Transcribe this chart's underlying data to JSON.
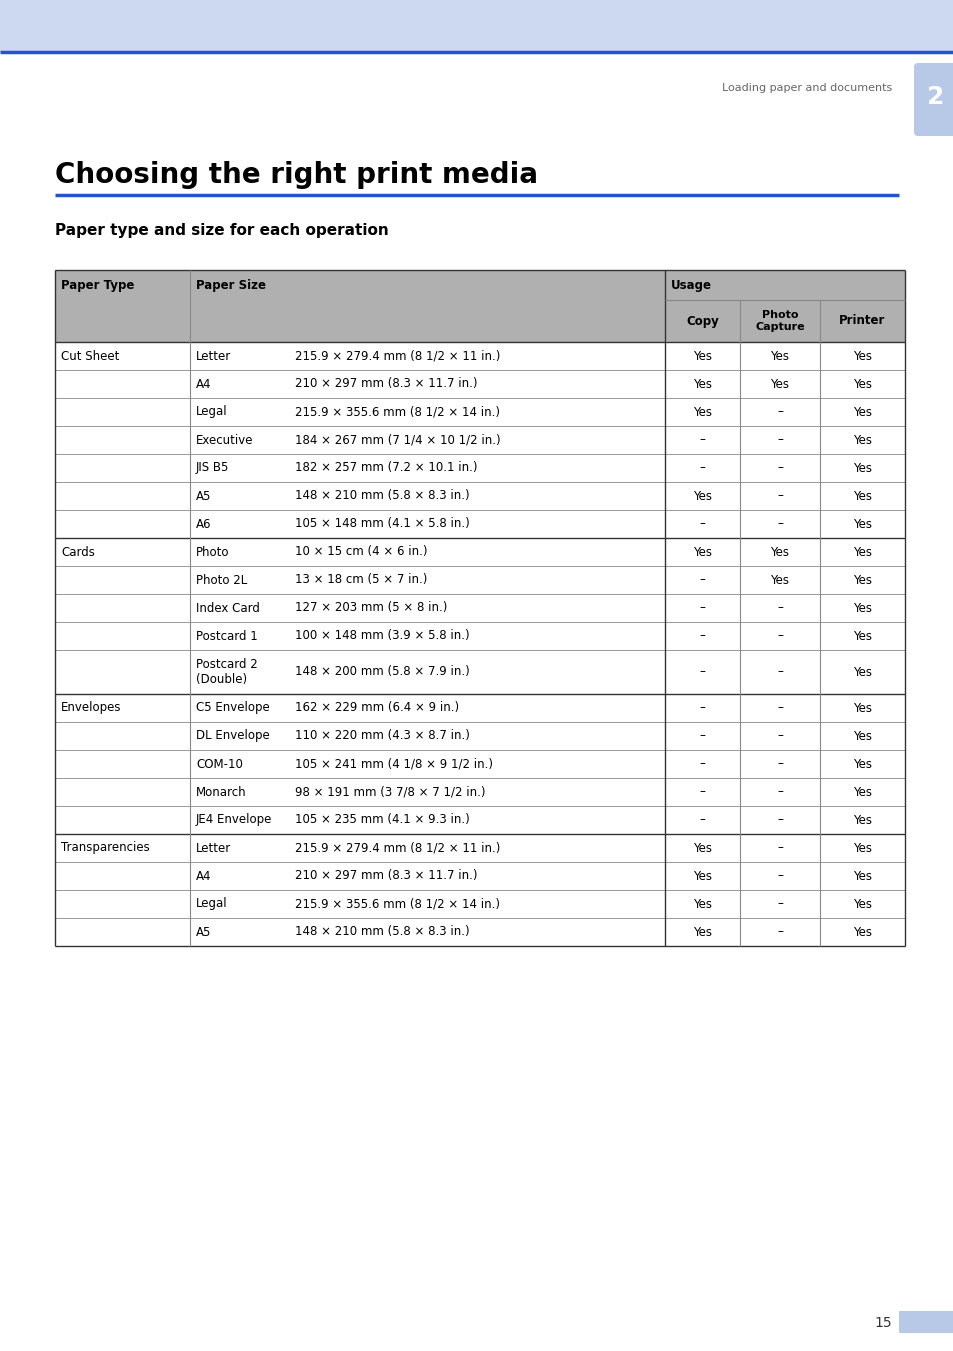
{
  "page_bg": "#ffffff",
  "header_bg": "#ccd9f0",
  "header_line_color": "#2255cc",
  "table_header_bg": "#b0b0b0",
  "header_text": "Loading paper and documents",
  "title": "Choosing the right print media",
  "subtitle": "Paper type and size for each operation",
  "chapter_num": "2",
  "chapter_badge_color": "#b8c9e8",
  "page_num": "15",
  "page_num_badge": "#b8c9e8",
  "rows": [
    [
      "Cut Sheet",
      "Letter",
      "215.9 × 279.4 mm (8 1/2 × 11 in.)",
      "Yes",
      "Yes",
      "Yes"
    ],
    [
      "",
      "A4",
      "210 × 297 mm (8.3 × 11.7 in.)",
      "Yes",
      "Yes",
      "Yes"
    ],
    [
      "",
      "Legal",
      "215.9 × 355.6 mm (8 1/2 × 14 in.)",
      "Yes",
      "–",
      "Yes"
    ],
    [
      "",
      "Executive",
      "184 × 267 mm (7 1/4 × 10 1/2 in.)",
      "–",
      "–",
      "Yes"
    ],
    [
      "",
      "JIS B5",
      "182 × 257 mm (7.2 × 10.1 in.)",
      "–",
      "–",
      "Yes"
    ],
    [
      "",
      "A5",
      "148 × 210 mm (5.8 × 8.3 in.)",
      "Yes",
      "–",
      "Yes"
    ],
    [
      "",
      "A6",
      "105 × 148 mm (4.1 × 5.8 in.)",
      "–",
      "–",
      "Yes"
    ],
    [
      "Cards",
      "Photo",
      "10 × 15 cm (4 × 6 in.)",
      "Yes",
      "Yes",
      "Yes"
    ],
    [
      "",
      "Photo 2L",
      "13 × 18 cm (5 × 7 in.)",
      "–",
      "Yes",
      "Yes"
    ],
    [
      "",
      "Index Card",
      "127 × 203 mm (5 × 8 in.)",
      "–",
      "–",
      "Yes"
    ],
    [
      "",
      "Postcard 1",
      "100 × 148 mm (3.9 × 5.8 in.)",
      "–",
      "–",
      "Yes"
    ],
    [
      "",
      "Postcard 2\n(Double)",
      "148 × 200 mm (5.8 × 7.9 in.)",
      "–",
      "–",
      "Yes"
    ],
    [
      "Envelopes",
      "C5 Envelope",
      "162 × 229 mm (6.4 × 9 in.)",
      "–",
      "–",
      "Yes"
    ],
    [
      "",
      "DL Envelope",
      "110 × 220 mm (4.3 × 8.7 in.)",
      "–",
      "–",
      "Yes"
    ],
    [
      "",
      "COM-10",
      "105 × 241 mm (4 1/8 × 9 1/2 in.)",
      "–",
      "–",
      "Yes"
    ],
    [
      "",
      "Monarch",
      "98 × 191 mm (3 7/8 × 7 1/2 in.)",
      "–",
      "–",
      "Yes"
    ],
    [
      "",
      "JE4 Envelope",
      "105 × 235 mm (4.1 × 9.3 in.)",
      "–",
      "–",
      "Yes"
    ],
    [
      "Transparencies",
      "Letter",
      "215.9 × 279.4 mm (8 1/2 × 11 in.)",
      "Yes",
      "–",
      "Yes"
    ],
    [
      "",
      "A4",
      "210 × 297 mm (8.3 × 11.7 in.)",
      "Yes",
      "–",
      "Yes"
    ],
    [
      "",
      "Legal",
      "215.9 × 355.6 mm (8 1/2 × 14 in.)",
      "Yes",
      "–",
      "Yes"
    ],
    [
      "",
      "A5",
      "148 × 210 mm (5.8 × 8.3 in.)",
      "Yes",
      "–",
      "Yes"
    ]
  ],
  "section_boundaries": [
    0,
    7,
    12,
    17,
    21
  ]
}
